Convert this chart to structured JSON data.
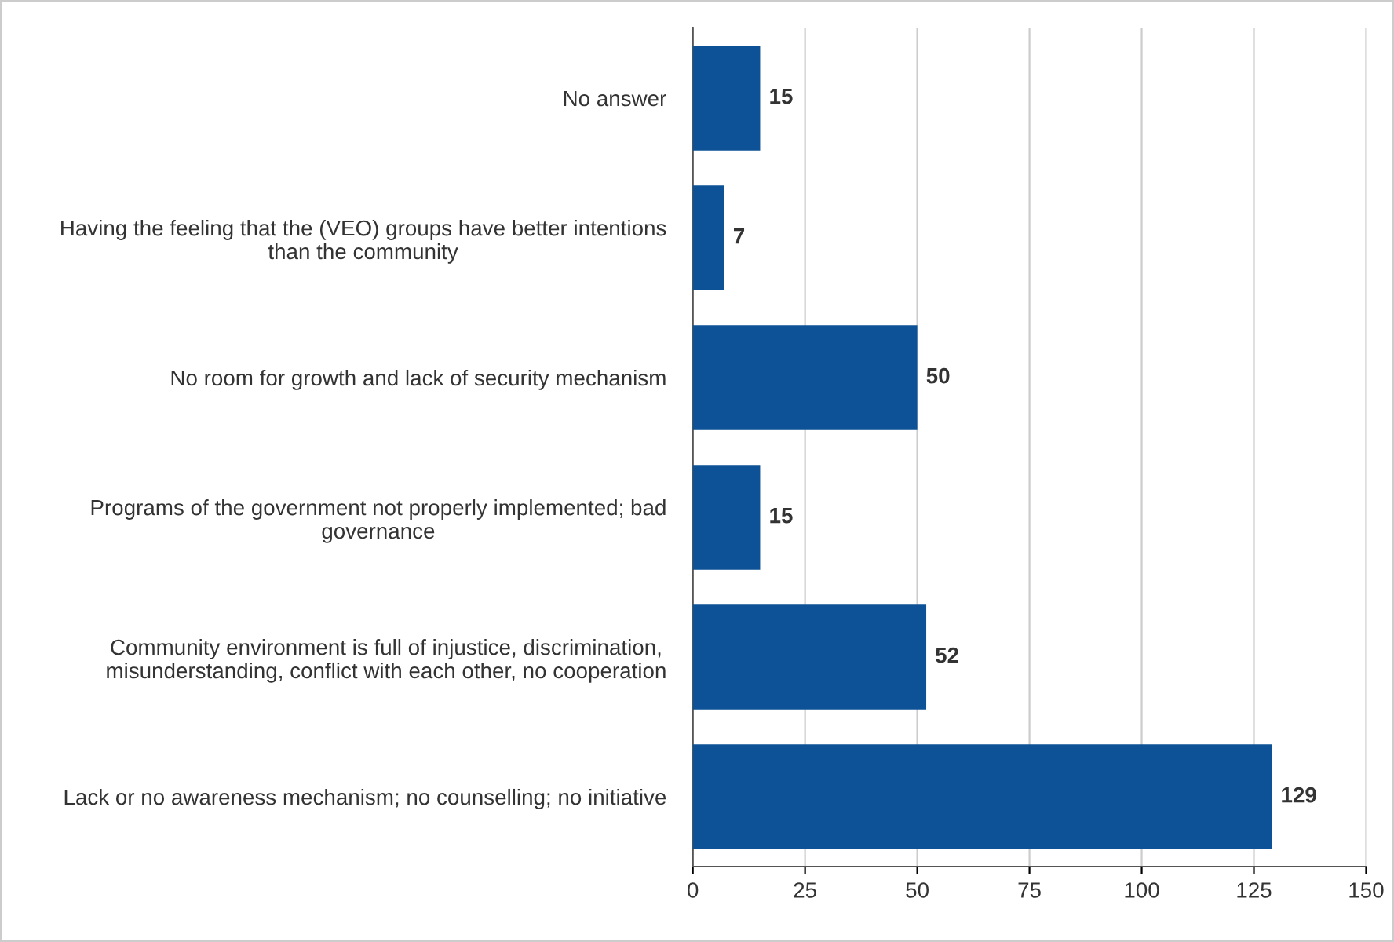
{
  "chart_data": {
    "type": "bar",
    "orientation": "horizontal",
    "categories": [
      "No answer",
      "Having the feeling that the (VEO) groups have better intentions\nthan the community",
      "No room for growth and lack of security mechanism",
      "Programs of the government not properly implemented; bad\ngovernance",
      "Community environment is full of injustice, discrimination,\nmisunderstanding, conflict with each other, no cooperation",
      "Lack or no awareness mechanism; no counselling; no initiative"
    ],
    "values": [
      15,
      7,
      50,
      15,
      52,
      129
    ],
    "color": "#0d5296",
    "xlim": [
      0,
      150
    ],
    "xticks": [
      0,
      25,
      50,
      75,
      100,
      125,
      150
    ],
    "grid": "x",
    "data_labels": true,
    "legend": false
  }
}
